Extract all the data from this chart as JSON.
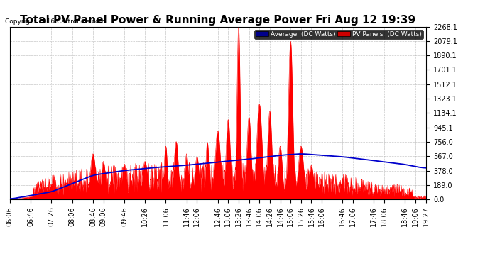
{
  "title": "Total PV Panel Power & Running Average Power Fri Aug 12 19:39",
  "copyright": "Copyright 2016 Cartronics.com",
  "legend_avg": "Average  (DC Watts)",
  "legend_pv": "PV Panels  (DC Watts)",
  "yticks": [
    0.0,
    189.0,
    378.0,
    567.0,
    756.0,
    945.1,
    1134.1,
    1323.1,
    1512.1,
    1701.1,
    1890.1,
    2079.1,
    2268.1
  ],
  "ymax": 2268.1,
  "xtick_labels": [
    "06:06",
    "06:46",
    "07:26",
    "08:06",
    "08:46",
    "09:06",
    "09:46",
    "10:26",
    "11:06",
    "11:46",
    "12:06",
    "12:46",
    "13:06",
    "13:26",
    "13:46",
    "14:06",
    "14:26",
    "14:46",
    "15:06",
    "15:26",
    "15:46",
    "16:06",
    "16:46",
    "17:06",
    "17:46",
    "18:06",
    "18:46",
    "19:06",
    "19:27"
  ],
  "bg_color": "#ffffff",
  "plot_bg_color": "#ffffff",
  "grid_color": "#b0b0b0",
  "red_color": "#ff0000",
  "blue_color": "#0000cc",
  "title_fontsize": 11,
  "tick_fontsize": 7,
  "avg_legend_bg": "#00008B",
  "pv_legend_bg": "#cc0000"
}
